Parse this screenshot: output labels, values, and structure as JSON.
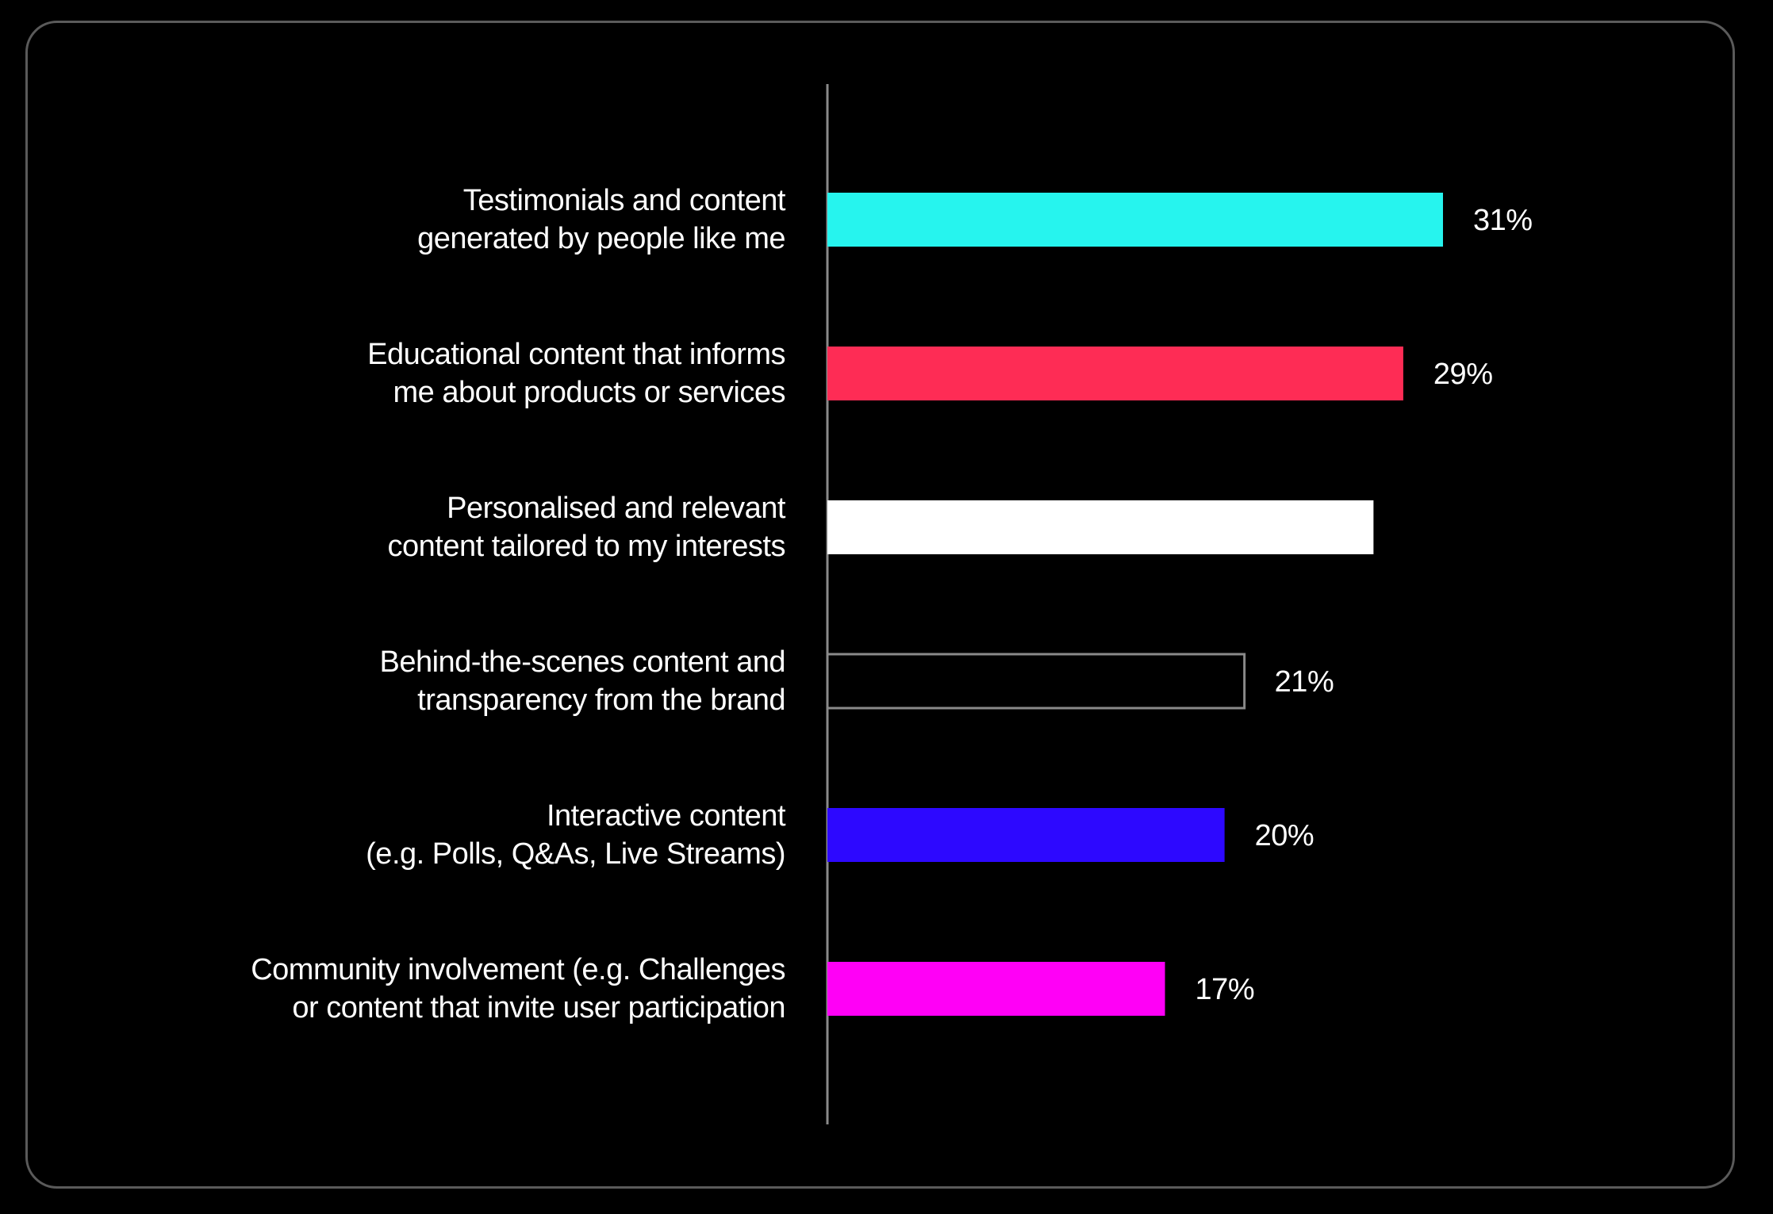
{
  "chart_data": {
    "type": "bar",
    "orientation": "horizontal",
    "categories": [
      [
        "Testimonials and content",
        "generated by people like me"
      ],
      [
        "Educational content that informs",
        "me about products or services"
      ],
      [
        "Personalised and relevant",
        "content tailored to my interests"
      ],
      [
        "Behind-the-scenes content and",
        "transparency from the brand"
      ],
      [
        "Interactive content",
        "(e.g. Polls, Q&As, Live Streams)"
      ],
      [
        "Community involvement (e.g. Challenges",
        "or content that invite user participation"
      ]
    ],
    "values": [
      31,
      29,
      27.5,
      21,
      20,
      17
    ],
    "value_labels": [
      "31%",
      "29%",
      "",
      "21%",
      "20%",
      "17%"
    ],
    "bar_colors": [
      "#26f4ee",
      "#fe2c55",
      "#ffffff",
      "#000000",
      "#2d08ff",
      "#ff00f6"
    ],
    "bar_outline": [
      "",
      "",
      "",
      "#8a8a8a",
      "",
      ""
    ],
    "xlim": [
      0,
      31
    ],
    "grid": false,
    "legend": "none"
  }
}
